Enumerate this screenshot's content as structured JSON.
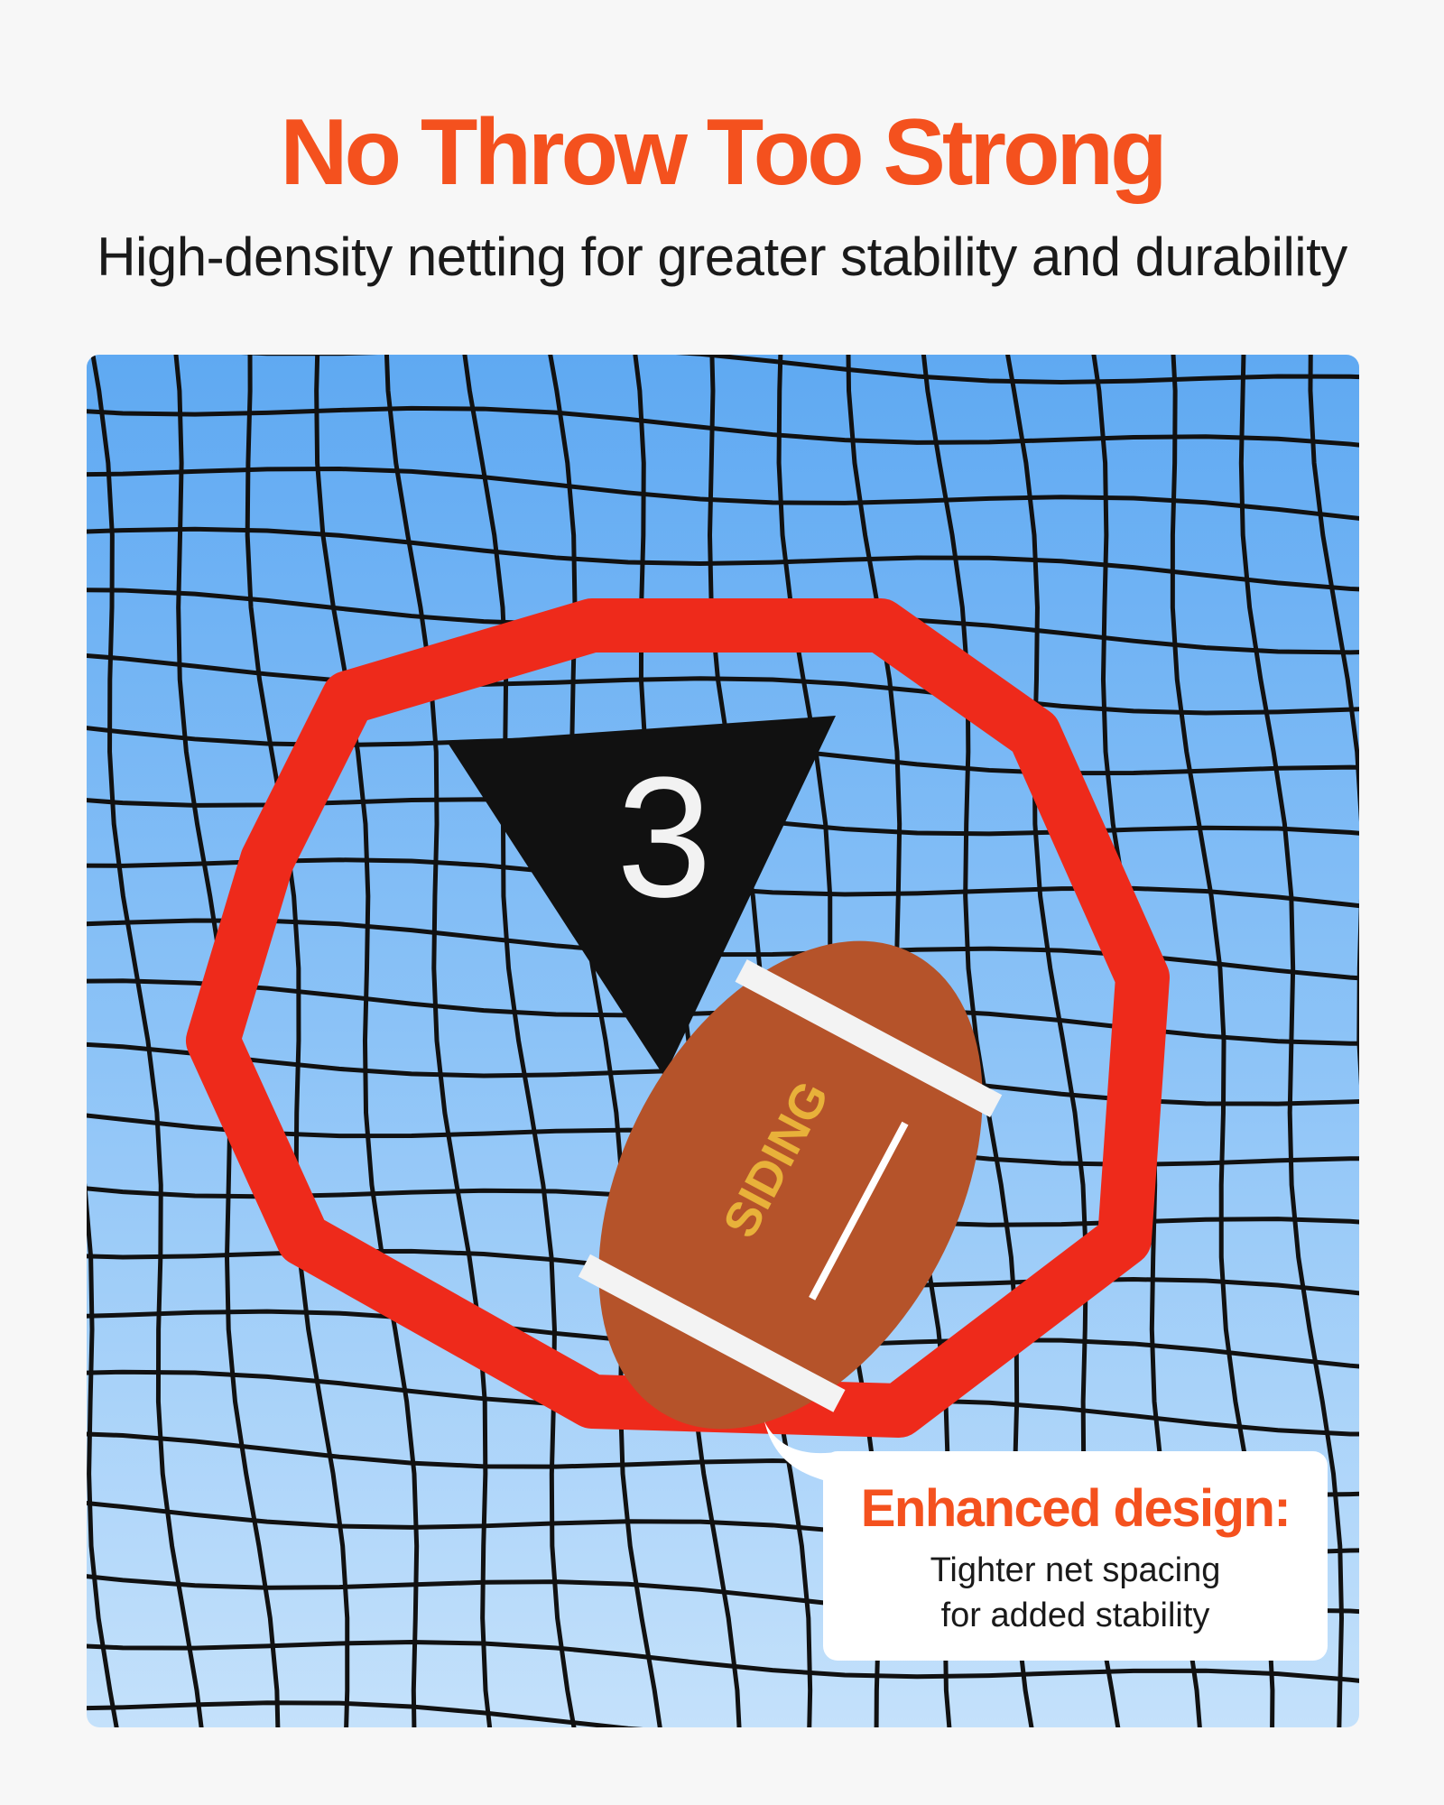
{
  "header": {
    "title": "No Throw Too Strong",
    "subtitle": "High-density netting for greater stability and durability"
  },
  "photo": {
    "target_number": "3",
    "ball_logo": "SIDING",
    "colors": {
      "frame": "#ee2a1b",
      "sky": "#8cc3f7",
      "net": "#111111"
    }
  },
  "callout": {
    "title": "Enhanced design:",
    "line1": "Tighter net spacing",
    "line2": "for added stability"
  },
  "colors": {
    "accent": "#f4511e",
    "background": "#f7f7f7"
  }
}
